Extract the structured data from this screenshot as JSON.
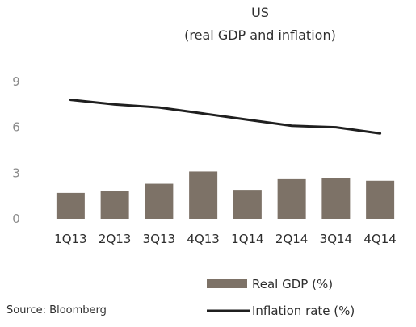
{
  "chart_data": {
    "type": "bar",
    "title": "US",
    "subtitle": "(real GDP and inflation)",
    "categories": [
      "1Q13",
      "2Q13",
      "3Q13",
      "4Q13",
      "1Q14",
      "2Q14",
      "3Q14",
      "4Q14"
    ],
    "series": [
      {
        "name": "Real GDP (%)",
        "type": "bar",
        "color": "#7d7267",
        "values": [
          1.7,
          1.8,
          2.3,
          3.1,
          1.9,
          2.6,
          2.7,
          2.5
        ]
      },
      {
        "name": "Inflation rate (%)",
        "type": "line",
        "color": "#1f1f1f",
        "values": [
          7.8,
          7.5,
          7.3,
          6.9,
          6.5,
          6.1,
          6.0,
          5.6
        ]
      }
    ],
    "ylim": [
      0,
      9
    ],
    "yticks": [
      0,
      3,
      6,
      9
    ],
    "xlabel": "",
    "ylabel": "",
    "grid": false,
    "legend_position": "bottom-right"
  },
  "source": "Source:  Bloomberg"
}
